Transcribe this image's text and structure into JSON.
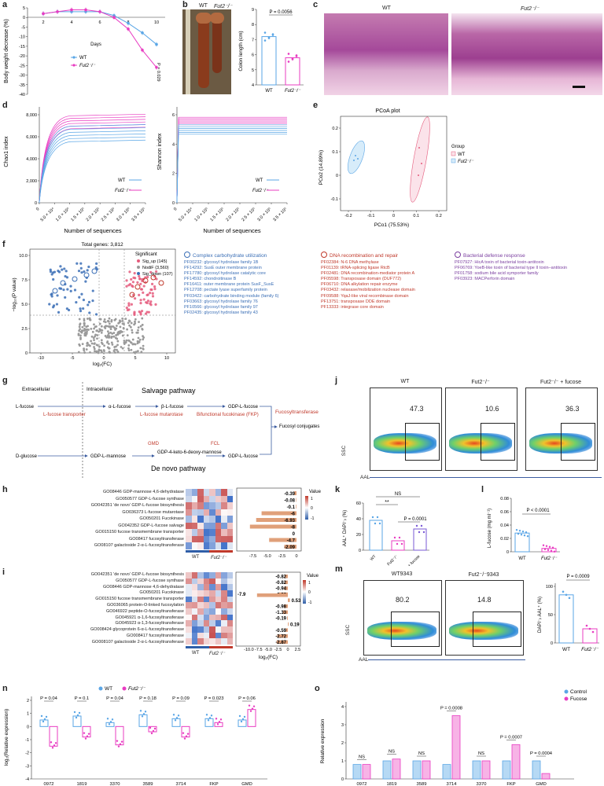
{
  "panels": {
    "a": {
      "label": "a",
      "ylabel": "Body weight decrease (%)",
      "xlabel": "Days",
      "legend": [
        "WT",
        "Fut2⁻/⁻"
      ],
      "stat": "P = 0.029",
      "ticks_y": [
        "5",
        "0",
        "-5",
        "-10",
        "-15",
        "-20",
        "-25",
        "-30",
        "-35",
        "-40"
      ],
      "ticks_x": [
        "2",
        "4",
        "6",
        "8",
        "10"
      ]
    },
    "b": {
      "label": "b",
      "photo_labels": [
        "WT",
        "Fut2⁻/⁻"
      ],
      "ylabel": "Colon length (cm)",
      "stat": "P = 0.0056",
      "ticks_y": [
        "9",
        "8",
        "7",
        "6",
        "5",
        "4"
      ],
      "cats": [
        "WT",
        "Fut2⁻/⁻"
      ]
    },
    "c": {
      "label": "c",
      "titles": [
        "WT",
        "Fut2⁻/⁻"
      ]
    },
    "d": {
      "label": "d",
      "ylabel1": "Chao1 index",
      "ylabel2": "Shannon index",
      "xlabel": "Number of sequences",
      "ticks_y1": [
        "8,000",
        "6,000",
        "4,000",
        "2,000",
        "0"
      ],
      "ticks_y2": [
        "6",
        "4",
        "2",
        "0"
      ],
      "ticks_x": [
        "0",
        "5.0 × 10⁴",
        "1.0 × 10⁵",
        "1.5 × 10⁵",
        "2.0 × 10⁵",
        "2.5 × 10⁵",
        "3.0 × 10⁵",
        "3.5 × 10⁵"
      ],
      "legend": [
        "WT",
        "Fut2⁻/⁻"
      ]
    },
    "e": {
      "label": "e",
      "title": "PCoA plot",
      "xlabel": "PCo1 (75.53%)",
      "ylabel": "PCo2 (14.89%)",
      "legend_title": "Group",
      "legend": [
        "WT",
        "Fut2⁻/⁻"
      ],
      "ticks_x": [
        "-0.2",
        "-0.1",
        "0",
        "0.1",
        "0.2"
      ],
      "ticks_y": [
        "0.2",
        "0.1",
        "0",
        "-0.1"
      ]
    },
    "f": {
      "label": "f",
      "title": "Total genes: 3,812",
      "legend_title": "Significant",
      "legend": [
        "Sig_up (145)",
        "NodiF (3,560)",
        "Sig_down (107)"
      ],
      "xlabel": "log₂(FC)",
      "ylabel": "−log₁₀(P value)",
      "ticks_x": [
        "-10",
        "-5",
        "0",
        "5",
        "10"
      ],
      "ticks_y": [
        "10.0",
        "7.5",
        "5.0",
        "2.5",
        "0"
      ],
      "groups": [
        {
          "title": "Complex carbohydrate utilization",
          "items": [
            "PF00232: glycosyl hydrolase family 1B",
            "PF14292: SusE outer membrane protein",
            "PF17780: glycosyl hydrolase catalytic core",
            "PF14592: chondroitinase B",
            "PF16411: outer membrane protein SusF_SusE",
            "PF12708: pectate lyase superfamily protein",
            "PF03422: carbohydrate binding module (family 6)",
            "PF03663: glycosyl hydrolase family 76",
            "PF10566: glycosyl hydrolase family 97",
            "PF02435: glycosyl hydrolase family 43"
          ]
        },
        {
          "title": "DNA recombination and repair",
          "items": [
            "PF02384: N-6 DNA methylase",
            "PF01139: tRNA-splicing ligase RtcB",
            "PF02481: DNA recombination-mediator protein A",
            "PF05598: Transposase domain (DUF772)",
            "PF06710: DNA alkylation repair enzyme",
            "PF03432: relaxase/mobilization nuclease domain",
            "PF09588: YqaJ-like viral recombinase domain",
            "PF13751: transposase DDE domain",
            "PF13333: integrase core domain"
          ]
        },
        {
          "title": "Bacterial defense response",
          "items": [
            "PF07927: HicA toxin of bacterial toxin-antitoxin",
            "PF06769: YoeB-like toxin of bacterial type II toxin–antitoxin",
            "PF01758: sodium bile acid symporter family",
            "PF03923: MACPerforin domain"
          ]
        }
      ]
    },
    "g": {
      "label": "g",
      "extracellular": "Extracellular",
      "intracellular": "Intracellular",
      "salvage": "Salvage pathway",
      "denovo": "De novo pathway",
      "nodes": [
        "L-fucose",
        "α-L-fucose",
        "β-L-fucose",
        "GDP-L-fucose",
        "D-glucose",
        "GDP-L-mannose",
        "GDP-4-keto-6-deoxy-mannose",
        "GDP-L-fucose",
        "Fucosyl conjugates"
      ],
      "enzymes": [
        "L-fucose transporter",
        "L-fucose mutarotase",
        "Bifunctional fucokinase (FKP)",
        "Fucosyltransferase",
        "GMD",
        "FCL"
      ]
    },
    "h": {
      "label": "h",
      "rows": [
        "GO08446 GDP-mannose 4,6-dehydratase",
        "GO050577 GDP-L-fucose synthase",
        "GO042351 'de novo' GDP-L-fucose biosynthesis",
        "GO036373 L-fucose mutarotase",
        "GO050201 Fucokinase",
        "GO042352 GDP-L-fucose salvage",
        "GO015150 fucose transmembrane transporter",
        "GO08417 fucosyltransferase",
        "GO08107 galactoside 2-α-L-fucosyltransferase"
      ],
      "fc": [
        "-0.39",
        "-0.08",
        "-0.1",
        "-6",
        "-6.93",
        "-8",
        "0",
        "-4.7",
        "-2.09"
      ],
      "fc_values": [
        -0.39,
        -0.08,
        -0.1,
        -6,
        -6.93,
        -8,
        0,
        -4.7,
        -2.09
      ],
      "cats": [
        "WT",
        "Fut2⁻/⁻"
      ],
      "legend_title": "Value",
      "legend": [
        "1",
        "0",
        "-1"
      ],
      "ticks": [
        "-7.5",
        "-5.0",
        "-2.5",
        "0"
      ]
    },
    "i": {
      "label": "i",
      "rows": [
        "GO042351 'de novo' GDP-L-fucose biosynthesis",
        "GO050577 GDP-L-fucose synthase",
        "GO08446 GDP-mannose 4,6-dehydratase",
        "GO050201 Fucokinase",
        "GO015150 fucose transmembrane transporter",
        "GO036065 protein-O-linked fucosylation",
        "GO046922 peptide-O-fucosyltransferase",
        "GO045921 α-1,6-fucosyltransferase",
        "GO045923 α-1,3-fucosyltransferase",
        "GO008424 glycoprotein 6-α-L-fucosyltransferase",
        "GO008417 fucosyltransferase",
        "GO008107 galactoside 2-α-L-fucosyltransferase"
      ],
      "fc": [
        "-0.82",
        "-0.82",
        "-0.94",
        "-2.26",
        "0.53",
        "-0.98",
        "-1.33",
        "-0.19",
        "0.19",
        "-0.59",
        "-2.72",
        "-2.87"
      ],
      "fc_values": [
        -0.82,
        -0.82,
        -0.94,
        -2.26,
        0.53,
        -0.98,
        -1.33,
        -0.19,
        0.19,
        -0.59,
        -2.72,
        -2.87
      ],
      "extra": "-7.9",
      "cats": [
        "WT",
        "Fut2⁻/⁻"
      ],
      "legend_title": "Value",
      "legend": [
        "1",
        "0",
        "-1"
      ],
      "ticks": [
        "-10.0",
        "-7.5",
        "-5.0",
        "-2.5",
        "0",
        "2.5"
      ],
      "xlabel": "log₂(FC)"
    },
    "j": {
      "label": "j",
      "titles": [
        "WT",
        "Fut2⁻/⁻",
        "Fut2⁻/⁻ + fucose"
      ],
      "values": [
        "47.3",
        "10.6",
        "36.3"
      ],
      "ylabel": "SSC",
      "xlabel": "AAL"
    },
    "k": {
      "label": "k",
      "ylabel": "AAL⁺ DAPI⁻ᵢₗ (%)",
      "stats": [
        "NS",
        "**",
        "P = 0.0001"
      ],
      "cats": [
        "WT",
        "Fut2⁻/⁻",
        "Fut2⁻/⁻ + fucose"
      ],
      "ticks_y": [
        "60",
        "40",
        "20",
        "0"
      ],
      "values": [
        38,
        12,
        27
      ]
    },
    "l": {
      "label": "l",
      "ylabel": "L-fucose (mg ml⁻¹)",
      "stat": "P < 0.0001",
      "cats": [
        "WT",
        "Fut2⁻/⁻"
      ],
      "ticks_y": [
        "0.08",
        "0.06",
        "0.04",
        "0.02",
        "0"
      ],
      "values": [
        0.028,
        0.005
      ]
    },
    "m": {
      "label": "m",
      "titles": [
        "WT9343",
        "Fut2⁻/⁻9343"
      ],
      "values": [
        "80.2",
        "14.8"
      ],
      "ylabel": "SSC",
      "xlabel": "AAL",
      "bar_ylabel": "DAPI⁻ᵢₗ AAL⁺ (%)",
      "stat": "P = 0.0009",
      "cats": [
        "WT",
        "Fut2⁻/⁻"
      ],
      "ticks_y": [
        "100",
        "50",
        "0"
      ],
      "bar_values": [
        85,
        25
      ]
    },
    "n": {
      "label": "n",
      "ylabel": "log₂(Relative expression)",
      "legend": [
        "WT",
        "Fut2⁻/⁻"
      ],
      "categories": [
        "0972",
        "1819",
        "3370",
        "3589",
        "3714",
        "FKP",
        "GMD"
      ],
      "stats": [
        "P = 0.04",
        "P = 0.1",
        "P = 0.04",
        "P = 0.18",
        "P = 0.09",
        "P = 0.023",
        "P = 0.06"
      ],
      "ticks_y": [
        "2",
        "1",
        "0",
        "-1",
        "-2",
        "-3",
        "-4"
      ]
    },
    "o": {
      "label": "o",
      "ylabel": "Relative expression",
      "legend": [
        "Control",
        "Fucose"
      ],
      "categories": [
        "0972",
        "1819",
        "3589",
        "3714",
        "3370",
        "FKP",
        "GMD"
      ],
      "stats": [
        "NS",
        "NS",
        "NS",
        "P = 0.0008",
        "NS",
        "P = 0.0007",
        "P = 0.0004"
      ],
      "ticks_y": [
        "4",
        "3",
        "2",
        "1",
        "0"
      ]
    }
  },
  "chart_data": [
    {
      "type": "line",
      "title": "",
      "xlabel": "Days",
      "ylabel": "Body weight decrease (%)",
      "ylim": [
        -40,
        5
      ],
      "series": [
        {
          "name": "WT",
          "x": [
            1,
            2,
            3,
            4,
            5,
            6,
            7,
            8,
            9
          ],
          "y": [
            2,
            3,
            3,
            3,
            3,
            1,
            -3,
            -8,
            -14
          ]
        },
        {
          "name": "Fut2⁻/⁻",
          "x": [
            1,
            2,
            3,
            4,
            5,
            6,
            7,
            8,
            9
          ],
          "y": [
            2,
            3,
            4,
            4,
            3,
            0,
            -6,
            -17,
            -26
          ]
        }
      ]
    },
    {
      "type": "bar",
      "categories": [
        "WT",
        "Fut2⁻/⁻"
      ],
      "values": [
        7.2,
        5.8
      ],
      "ylabel": "Colon length (cm)",
      "ylim": [
        4,
        9
      ]
    },
    {
      "type": "bar",
      "categories": [
        "WT",
        "Fut2⁻/⁻",
        "Fut2⁻/⁻ + fucose"
      ],
      "values": [
        38,
        12,
        27
      ],
      "ylim": [
        0,
        60
      ]
    },
    {
      "type": "bar",
      "categories": [
        "WT",
        "Fut2⁻/⁻"
      ],
      "values": [
        0.028,
        0.005
      ],
      "ylim": [
        0,
        0.08
      ]
    },
    {
      "type": "bar",
      "categories": [
        "WT",
        "Fut2⁻/⁻"
      ],
      "values": [
        85,
        25
      ],
      "ylim": [
        0,
        100
      ]
    },
    {
      "type": "bar",
      "categories": [
        "0972",
        "1819",
        "3370",
        "3589",
        "3714",
        "FKP",
        "GMD"
      ],
      "series": [
        {
          "name": "WT",
          "values": [
            0.5,
            0.8,
            0.3,
            0.9,
            0.6,
            0.6,
            0.5
          ]
        },
        {
          "name": "Fut2⁻/⁻",
          "values": [
            -1.5,
            -0.8,
            -1.4,
            -0.4,
            -0.8,
            0.3,
            1.3
          ]
        }
      ],
      "ylim": [
        -4,
        2
      ]
    },
    {
      "type": "bar",
      "categories": [
        "0972",
        "1819",
        "3589",
        "3714",
        "3370",
        "FKP",
        "GMD"
      ],
      "series": [
        {
          "name": "Control",
          "values": [
            0.8,
            1.0,
            1.0,
            0.8,
            1.0,
            1.0,
            1.0
          ]
        },
        {
          "name": "Fucose",
          "values": [
            0.8,
            1.1,
            1.0,
            3.5,
            1.0,
            1.9,
            0.3
          ]
        }
      ],
      "ylim": [
        0,
        4
      ]
    }
  ],
  "colors": {
    "wt": "#5aa6e6",
    "ko": "#e83cc2",
    "accent_red": "#c0392b",
    "blue_text": "#3b6fb6",
    "purple_text": "#7b3fa0"
  }
}
